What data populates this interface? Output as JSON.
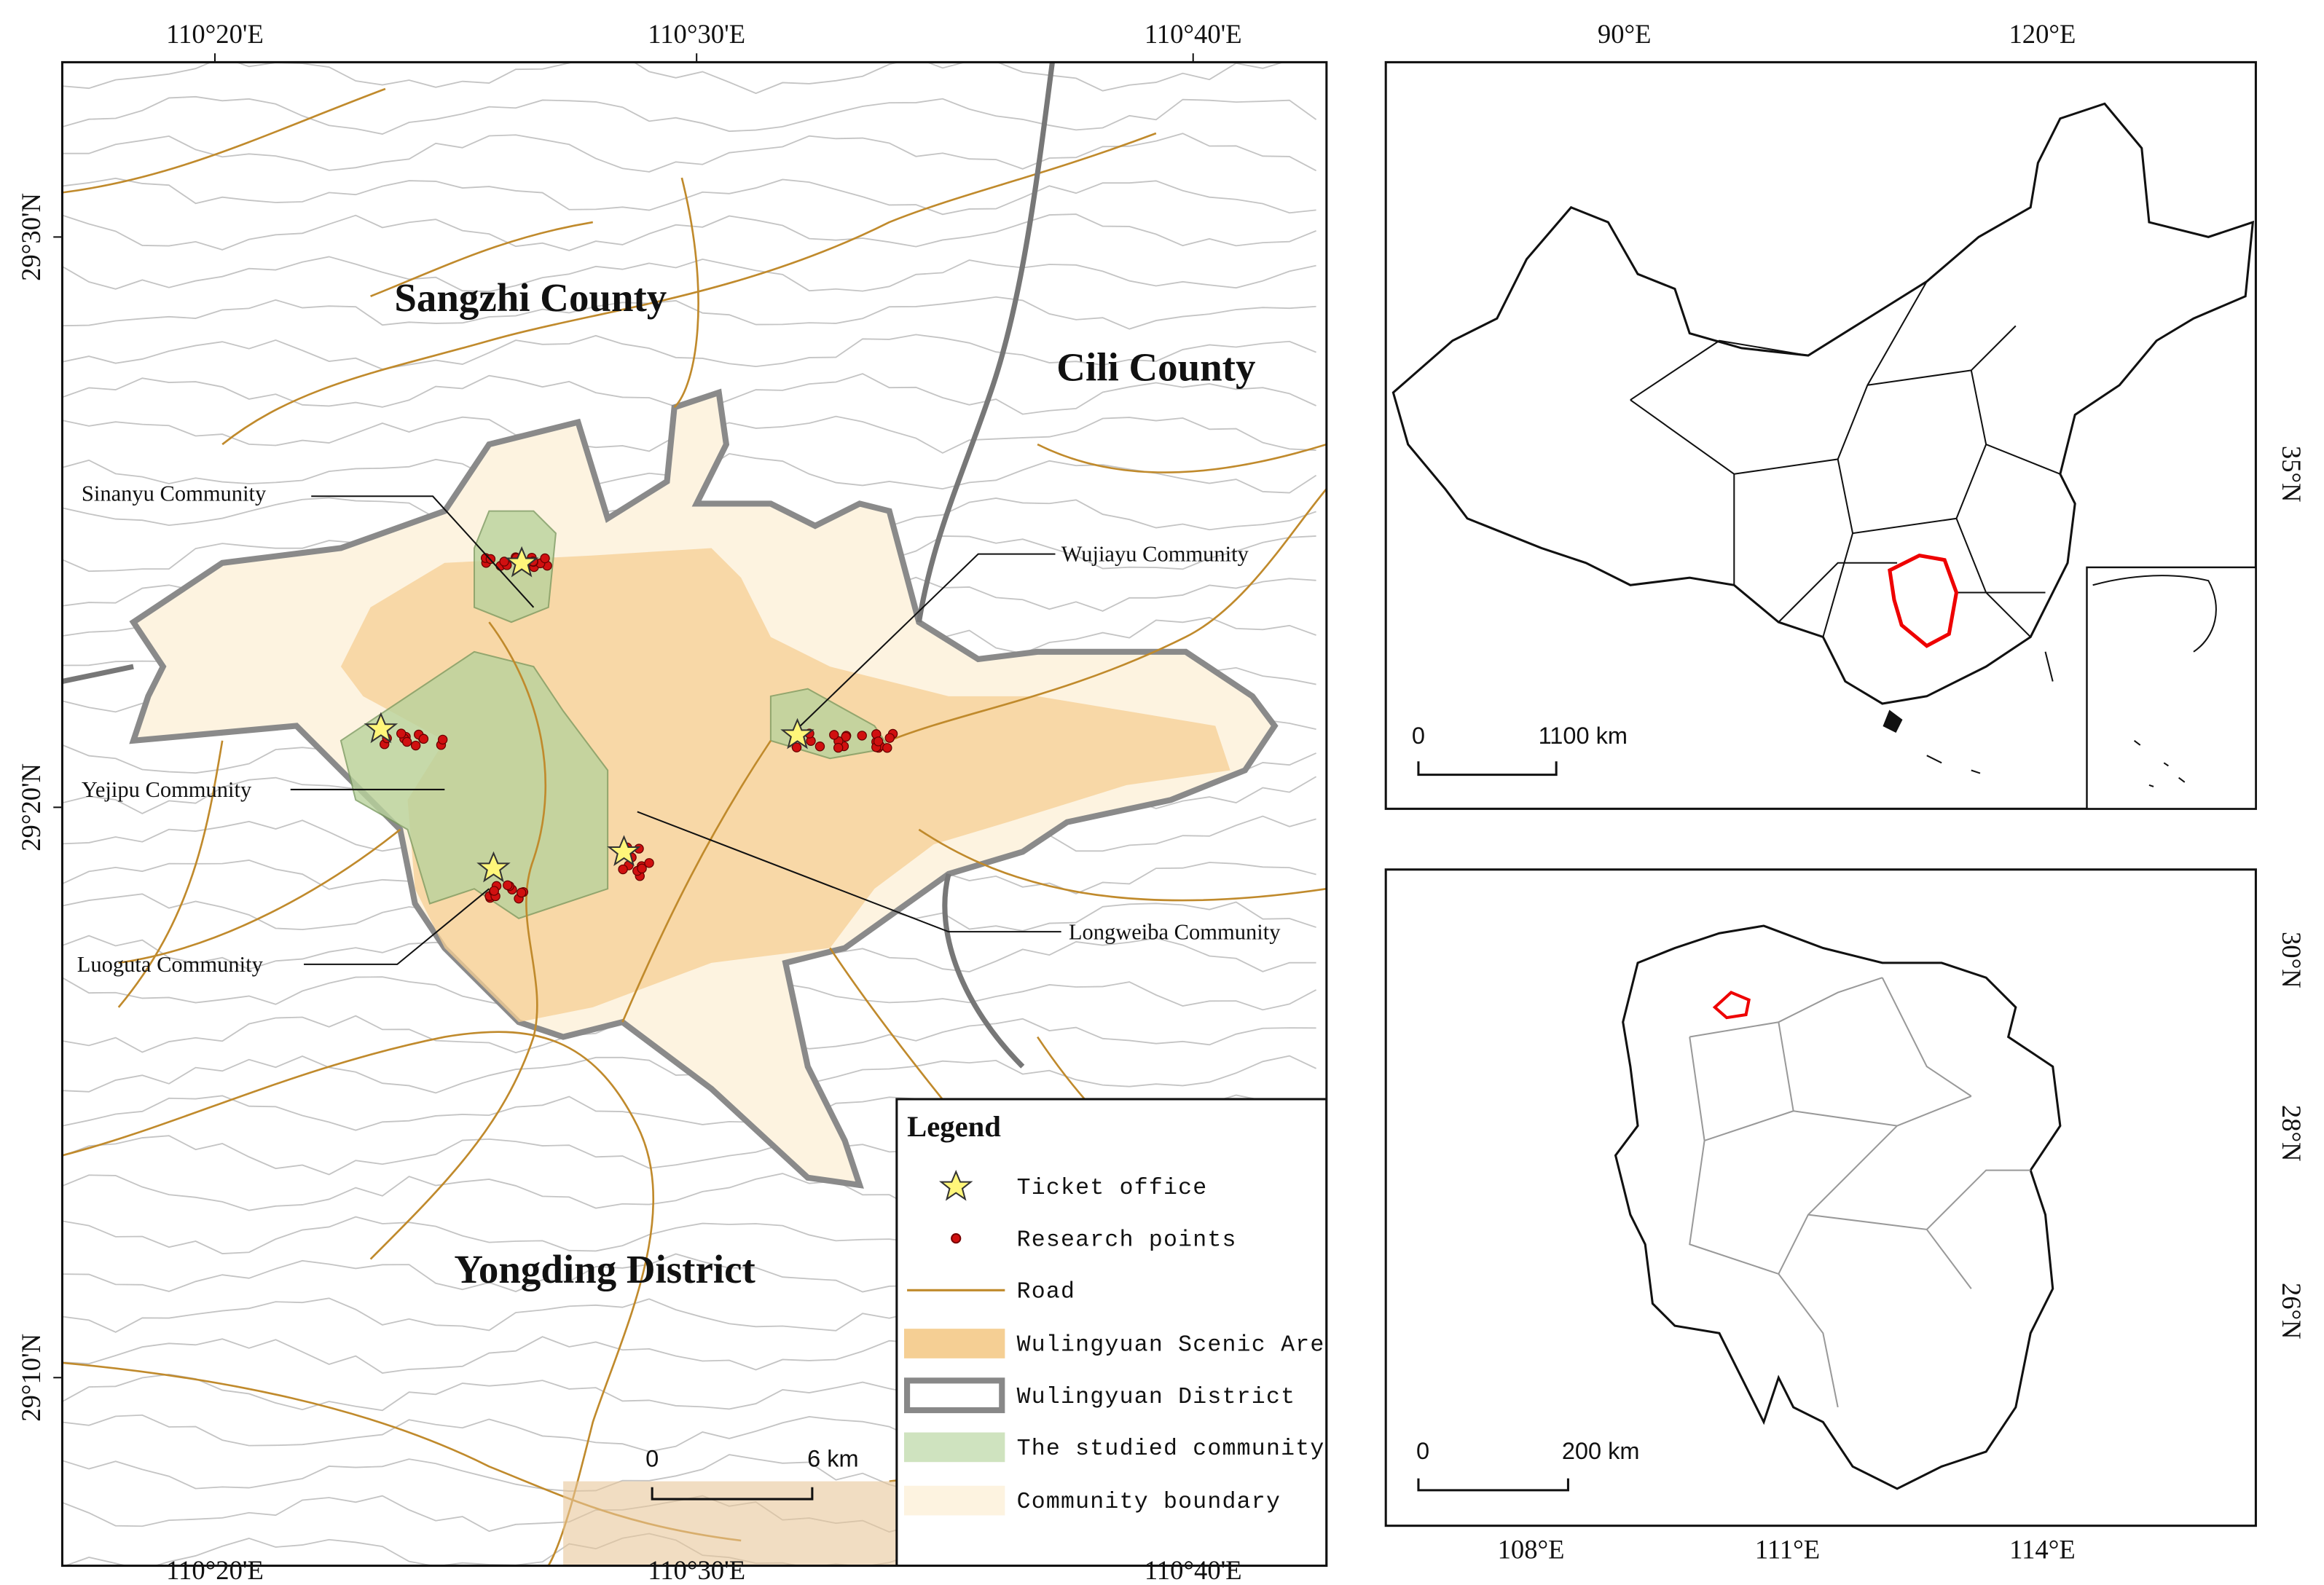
{
  "main_map": {
    "top_labels": [
      "110°20'E",
      "110°30'E",
      "110°40'E"
    ],
    "bottom_labels": [
      "110°20'E",
      "110°30'E",
      "110°40'E"
    ],
    "left_labels": [
      "29°30'N",
      "29°20'N",
      "29°10'N"
    ],
    "places": [
      "Sangzhi County",
      "Cili County",
      "Yongding District"
    ],
    "communities": [
      "Sinanyu Community",
      "Wujiayu Community",
      "Yejipu Community",
      "Longweiba Community",
      "Luoguta Community"
    ],
    "scale_bar": {
      "start": "0",
      "end": "6 km"
    }
  },
  "legend": {
    "title": "Legend",
    "items": [
      "Ticket office",
      "Research points",
      "Road",
      "Wulingyuan Scenic Area",
      "Wulingyuan District",
      "The studied community",
      "Community boundary"
    ]
  },
  "china_map": {
    "top_labels": [
      "90°E",
      "120°E"
    ],
    "right_labels": [
      "35°N"
    ],
    "scale_bar": {
      "start": "0",
      "end": "1100 km"
    }
  },
  "hunan_map": {
    "bottom_labels": [
      "108°E",
      "111°E",
      "114°E"
    ],
    "right_labels": [
      "30°N",
      "28°N",
      "26°N"
    ],
    "scale_bar": {
      "start": "0",
      "end": "200 km"
    }
  }
}
